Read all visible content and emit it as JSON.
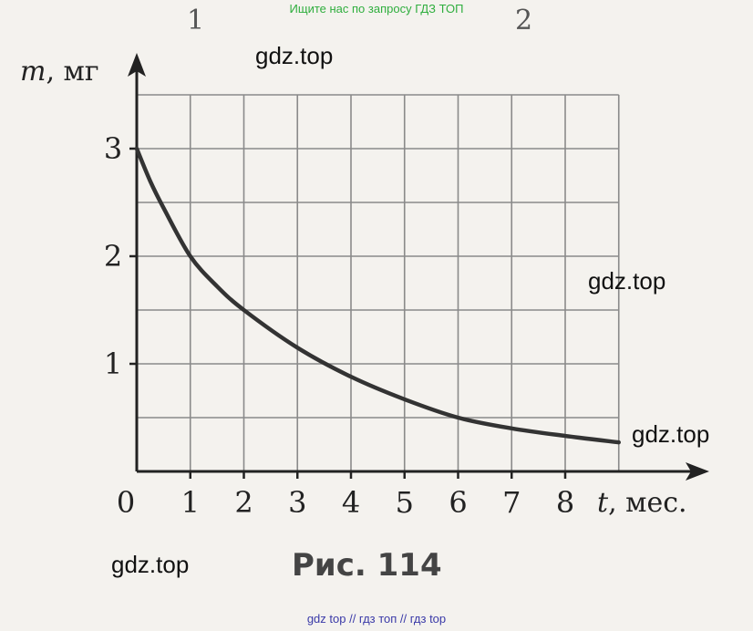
{
  "banner_top": "Ищите нас по запросу ГДЗ ТОП",
  "banner_bottom": "gdz top  //  гдз топ  //  гдз top",
  "watermarks": [
    "gdz.top",
    "gdz.top",
    "gdz.top",
    "gdz.top"
  ],
  "top_fragments": [
    "1",
    "2"
  ],
  "caption": "Рис. 114",
  "chart_data": {
    "type": "line",
    "xlabel_var": "t",
    "xlabel_unit": ", мес.",
    "ylabel_var": "m",
    "ylabel_unit": ", мг",
    "x_ticks": [
      "0",
      "1",
      "2",
      "3",
      "4",
      "5",
      "6",
      "7",
      "8"
    ],
    "y_ticks": [
      "1",
      "2",
      "3"
    ],
    "xlim": [
      0,
      9
    ],
    "ylim": [
      0,
      3.5
    ],
    "grid": true,
    "series": [
      {
        "x": [
          0,
          0.25,
          0.5,
          1,
          1.5,
          2,
          3,
          4,
          5,
          6,
          7,
          8,
          9
        ],
        "y": [
          3.0,
          2.7,
          2.45,
          2.0,
          1.72,
          1.5,
          1.15,
          0.88,
          0.67,
          0.5,
          0.4,
          0.33,
          0.27
        ]
      }
    ]
  }
}
